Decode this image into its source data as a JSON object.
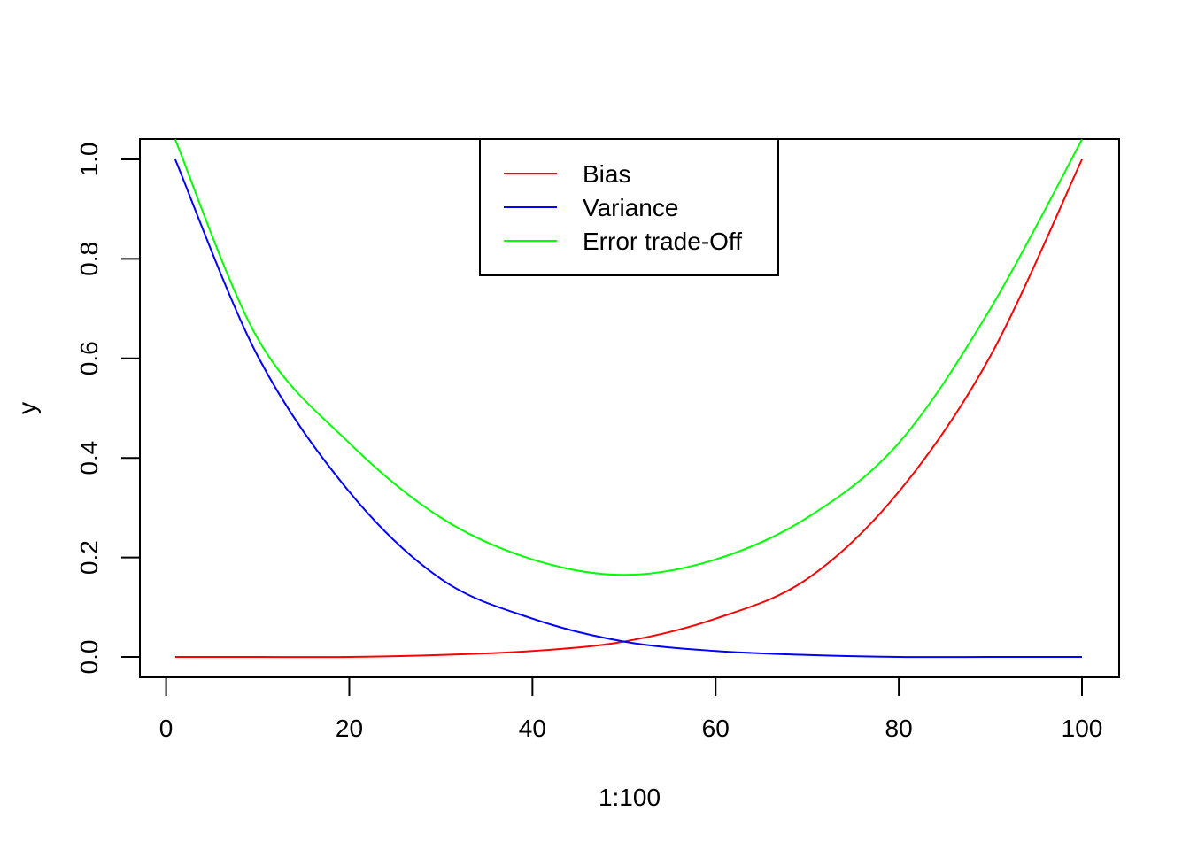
{
  "chart_data": {
    "type": "line",
    "title": "",
    "xlabel": "1:100",
    "ylabel": "y",
    "xlim": [
      1,
      100
    ],
    "ylim": [
      0,
      1
    ],
    "x_ticks": [
      0,
      20,
      40,
      60,
      80,
      100
    ],
    "x_tick_labels": [
      "0",
      "20",
      "40",
      "60",
      "80",
      "100"
    ],
    "y_ticks": [
      0.0,
      0.2,
      0.4,
      0.6,
      0.8,
      1.0
    ],
    "y_tick_labels": [
      "0.0",
      "0.2",
      "0.4",
      "0.6",
      "0.8",
      "1.0"
    ],
    "grid": false,
    "legend_position": "top-center",
    "x": [
      1,
      10,
      20,
      30,
      40,
      50,
      60,
      70,
      80,
      90,
      100
    ],
    "series": [
      {
        "name": "Bias",
        "color": "#ff0000",
        "values": [
          0.0,
          0.0,
          0.0,
          0.004,
          0.012,
          0.031,
          0.077,
          0.157,
          0.332,
          0.605,
          1.0
        ]
      },
      {
        "name": "Variance",
        "color": "#0000ff",
        "values": [
          1.0,
          0.605,
          0.332,
          0.157,
          0.077,
          0.031,
          0.012,
          0.004,
          0.0,
          0.0,
          0.0
        ]
      },
      {
        "name": "Error trade-Off",
        "color": "#00ff00",
        "values": [
          1.04,
          0.64,
          0.43,
          0.28,
          0.196,
          0.165,
          0.196,
          0.28,
          0.43,
          0.7,
          1.04
        ]
      }
    ]
  }
}
